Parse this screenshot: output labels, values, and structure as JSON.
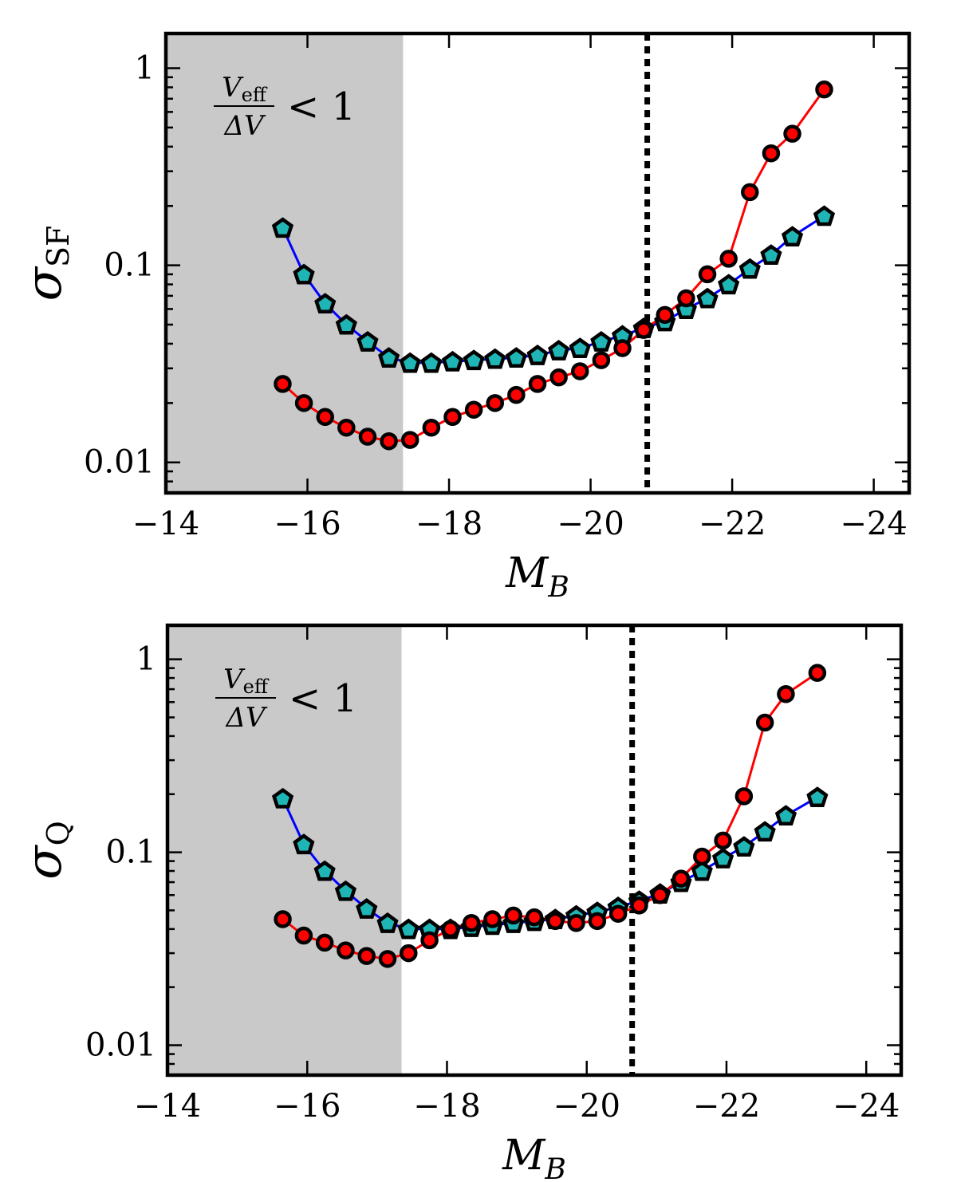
{
  "chart_data": [
    {
      "type": "line",
      "panel": "top",
      "ylabel": {
        "symbol": "σ",
        "subscript": "SF"
      },
      "xlabel": {
        "symbol": "M",
        "subscript": "B"
      },
      "x_scale": "linear",
      "x_inverted": true,
      "xlim": [
        -14,
        -24.5
      ],
      "xticks": [
        -14,
        -16,
        -18,
        -20,
        -22,
        -24
      ],
      "xtick_labels": [
        "−14",
        "−16",
        "−18",
        "−20",
        "−22",
        "−24"
      ],
      "y_scale": "log",
      "ylim": [
        0.007,
        1.5
      ],
      "yticks": [
        0.01,
        0.1,
        1
      ],
      "ytick_labels": [
        "0.01",
        "0.1",
        "1"
      ],
      "shaded_region": {
        "x_from": -14,
        "x_to": -17.35,
        "color": "#c9c9c9"
      },
      "vertical_line": {
        "x": -20.8,
        "style": "dotted",
        "color": "#000000"
      },
      "annotation": {
        "numerator": "V",
        "numerator_sub": "eff",
        "denominator": "ΔV",
        "relation": "< 1"
      },
      "series": [
        {
          "marker": "pentagon",
          "marker_color": "#1fb5b5",
          "line_color": "#0000ff",
          "x": [
            -15.65,
            -15.95,
            -16.25,
            -16.55,
            -16.85,
            -17.15,
            -17.45,
            -17.75,
            -18.05,
            -18.35,
            -18.65,
            -18.95,
            -19.25,
            -19.55,
            -19.85,
            -20.15,
            -20.45,
            -20.75,
            -21.05,
            -21.35,
            -21.65,
            -21.95,
            -22.25,
            -22.55,
            -22.85,
            -23.3
          ],
          "y": [
            0.155,
            0.09,
            0.064,
            0.05,
            0.041,
            0.034,
            0.032,
            0.032,
            0.0325,
            0.033,
            0.0335,
            0.034,
            0.035,
            0.037,
            0.038,
            0.041,
            0.044,
            0.048,
            0.052,
            0.06,
            0.068,
            0.08,
            0.096,
            0.113,
            0.14,
            0.178
          ]
        },
        {
          "marker": "circle",
          "marker_color": "#ff0000",
          "line_color": "#ff0000",
          "x": [
            -15.65,
            -15.95,
            -16.25,
            -16.55,
            -16.85,
            -17.15,
            -17.45,
            -17.75,
            -18.05,
            -18.35,
            -18.65,
            -18.95,
            -19.25,
            -19.55,
            -19.85,
            -20.15,
            -20.45,
            -20.75,
            -21.05,
            -21.35,
            -21.65,
            -21.95,
            -22.25,
            -22.55,
            -22.85,
            -23.3
          ],
          "y": [
            0.025,
            0.02,
            0.017,
            0.015,
            0.0135,
            0.0128,
            0.013,
            0.015,
            0.017,
            0.0185,
            0.02,
            0.022,
            0.025,
            0.027,
            0.029,
            0.033,
            0.038,
            0.047,
            0.056,
            0.068,
            0.09,
            0.108,
            0.235,
            0.37,
            0.465,
            0.78
          ]
        }
      ]
    },
    {
      "type": "line",
      "panel": "bottom",
      "ylabel": {
        "symbol": "σ",
        "subscript": "Q"
      },
      "xlabel": {
        "symbol": "M",
        "subscript": "B"
      },
      "x_scale": "linear",
      "x_inverted": true,
      "xlim": [
        -14,
        -24.5
      ],
      "xticks": [
        -14,
        -16,
        -18,
        -20,
        -22,
        -24
      ],
      "xtick_labels": [
        "−14",
        "−16",
        "−18",
        "−20",
        "−22",
        "−24"
      ],
      "y_scale": "log",
      "ylim": [
        0.007,
        1.5
      ],
      "yticks": [
        0.01,
        0.1,
        1
      ],
      "ytick_labels": [
        "0.01",
        "0.1",
        "1"
      ],
      "shaded_region": {
        "x_from": -14,
        "x_to": -17.35,
        "color": "#c9c9c9"
      },
      "vertical_line": {
        "x": -20.65,
        "style": "dotted",
        "color": "#000000"
      },
      "annotation": {
        "numerator": "V",
        "numerator_sub": "eff",
        "denominator": "ΔV",
        "relation": "< 1"
      },
      "series": [
        {
          "marker": "pentagon",
          "marker_color": "#1fb5b5",
          "line_color": "#0000ff",
          "x": [
            -15.65,
            -15.95,
            -16.25,
            -16.55,
            -16.85,
            -17.15,
            -17.45,
            -17.75,
            -18.05,
            -18.35,
            -18.65,
            -18.95,
            -19.25,
            -19.55,
            -19.85,
            -20.15,
            -20.45,
            -20.75,
            -21.05,
            -21.35,
            -21.65,
            -21.95,
            -22.25,
            -22.55,
            -22.85,
            -23.3
          ],
          "y": [
            0.19,
            0.11,
            0.08,
            0.063,
            0.051,
            0.043,
            0.04,
            0.04,
            0.04,
            0.041,
            0.042,
            0.043,
            0.044,
            0.045,
            0.047,
            0.049,
            0.052,
            0.056,
            0.061,
            0.07,
            0.08,
            0.093,
            0.107,
            0.128,
            0.155,
            0.193
          ]
        },
        {
          "marker": "circle",
          "marker_color": "#ff0000",
          "line_color": "#ff0000",
          "x": [
            -15.65,
            -15.95,
            -16.25,
            -16.55,
            -16.85,
            -17.15,
            -17.45,
            -17.75,
            -18.05,
            -18.35,
            -18.65,
            -18.95,
            -19.25,
            -19.55,
            -19.85,
            -20.15,
            -20.45,
            -20.75,
            -21.05,
            -21.35,
            -21.65,
            -21.95,
            -22.25,
            -22.55,
            -22.85,
            -23.3
          ],
          "y": [
            0.045,
            0.037,
            0.034,
            0.031,
            0.029,
            0.028,
            0.03,
            0.035,
            0.04,
            0.043,
            0.045,
            0.047,
            0.046,
            0.044,
            0.043,
            0.044,
            0.048,
            0.053,
            0.06,
            0.073,
            0.095,
            0.115,
            0.195,
            0.47,
            0.66,
            0.85
          ]
        }
      ]
    }
  ]
}
